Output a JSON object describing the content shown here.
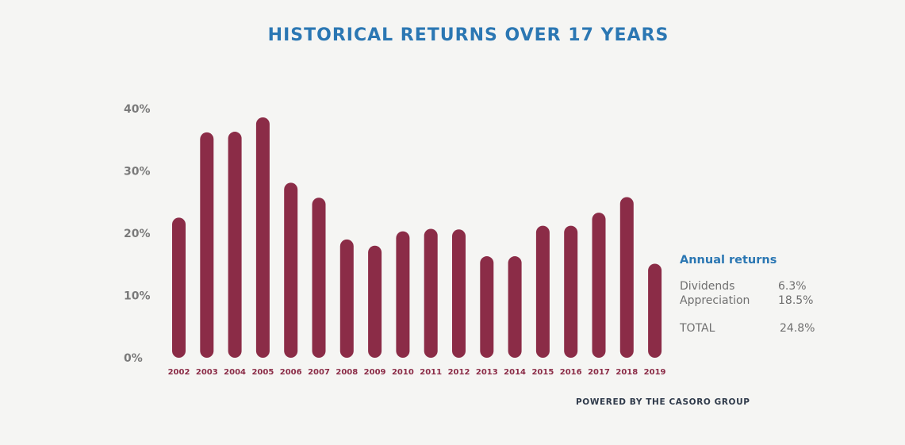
{
  "colors": {
    "title": "#2b77b3",
    "bar": "#8b2c47",
    "category_label": "#8b2c47",
    "tick_label": "#7a7a7a",
    "panel_heading": "#2b77b3",
    "panel_text": "#6f6f6f",
    "footer": "#2f3a4a",
    "background": "#f5f5f3"
  },
  "chart_data": {
    "type": "bar",
    "title": "HISTORICAL RETURNS OVER 17 YEARS",
    "categories": [
      "2002",
      "2003",
      "2004",
      "2005",
      "2006",
      "2007",
      "2008",
      "2009",
      "2010",
      "2011",
      "2012",
      "2013",
      "2014",
      "2015",
      "2016",
      "2017",
      "2018",
      "2019"
    ],
    "values": [
      22.5,
      36.2,
      36.3,
      38.6,
      28.1,
      25.7,
      19.0,
      18.0,
      20.3,
      20.7,
      20.6,
      16.3,
      16.3,
      21.2,
      21.2,
      23.3,
      25.8,
      15.1
    ],
    "y_ticks": [
      "0%",
      "10%",
      "20%",
      "30%",
      "40%"
    ],
    "y_tick_values": [
      0,
      10,
      20,
      30,
      40
    ],
    "ylim": [
      0,
      40
    ],
    "xlabel": "",
    "ylabel": "",
    "grid": false,
    "legend": "none"
  },
  "summary": {
    "heading": "Annual returns",
    "rows": [
      {
        "label": "Dividends",
        "value": "6.3%"
      },
      {
        "label": "Appreciation",
        "value": "18.5%"
      }
    ],
    "total": {
      "label": "TOTAL",
      "value": "24.8%"
    }
  },
  "footer": "POWERED BY THE CASORO GROUP"
}
